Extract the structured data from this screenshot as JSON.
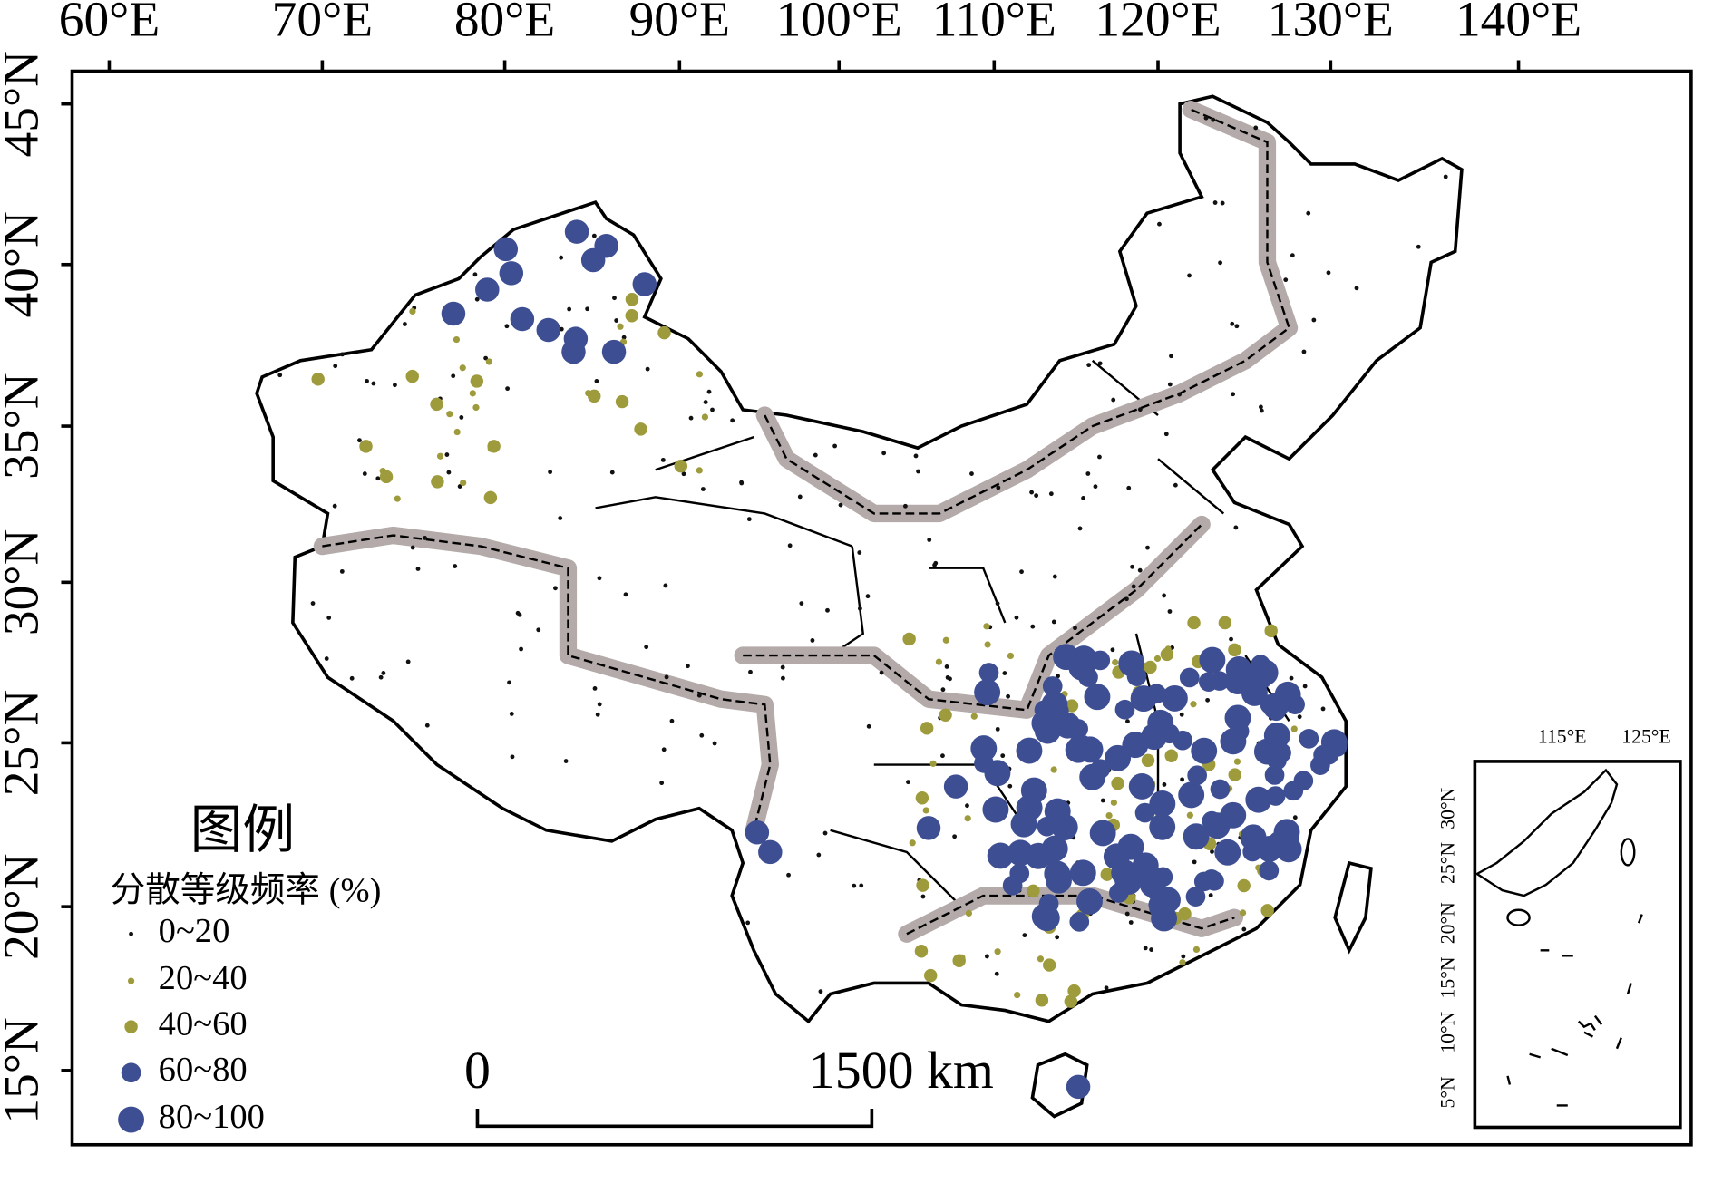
{
  "axes": {
    "lon_labels": [
      "60°E",
      "70°E",
      "80°E",
      "90°E",
      "100°E",
      "110°E",
      "120°E",
      "130°E",
      "140°E"
    ],
    "lat_labels": [
      "45°N",
      "40°N",
      "35°N",
      "30°N",
      "25°N",
      "20°N",
      "15°N"
    ]
  },
  "legend": {
    "title": "图例",
    "subtitle": "分散等级频率 (%)",
    "classes": [
      {
        "label": "0~20",
        "color": "#111111"
      },
      {
        "label": "20~40",
        "color": "#9e9b3c"
      },
      {
        "label": "40~60",
        "color": "#9e9b3c"
      },
      {
        "label": "60~80",
        "color": "#3d4e93"
      },
      {
        "label": "80~100",
        "color": "#3d4e93"
      }
    ]
  },
  "scale_bar": {
    "start": "0",
    "end": "1500 km"
  },
  "inset": {
    "lon_labels": [
      "115°E",
      "125°E"
    ],
    "lat_labels": [
      "30°N",
      "25°N",
      "20°N",
      "15°N",
      "10°N",
      "5°N"
    ]
  }
}
